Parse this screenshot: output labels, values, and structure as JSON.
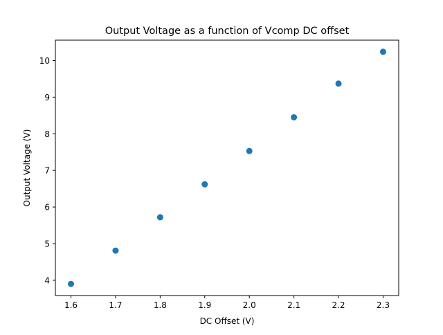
{
  "chart_data": {
    "type": "scatter",
    "title": "Output Voltage as a function of Vcomp DC offset",
    "xlabel": "DC Offset (V)",
    "ylabel": "Output Voltage (V)",
    "x": [
      1.6,
      1.7,
      1.8,
      1.9,
      2.0,
      2.1,
      2.2,
      2.3
    ],
    "y": [
      3.9,
      4.81,
      5.72,
      6.62,
      7.53,
      8.45,
      9.37,
      10.24
    ],
    "xlim": [
      1.565,
      2.335
    ],
    "ylim": [
      3.583,
      10.557
    ],
    "xticks": [
      1.6,
      1.7,
      1.8,
      1.9,
      2.0,
      2.1,
      2.2,
      2.3
    ],
    "xtick_labels": [
      "1.6",
      "1.7",
      "1.8",
      "1.9",
      "2.0",
      "2.1",
      "2.2",
      "2.3"
    ],
    "yticks": [
      4,
      5,
      6,
      7,
      8,
      9,
      10
    ],
    "ytick_labels": [
      "4",
      "5",
      "6",
      "7",
      "8",
      "9",
      "10"
    ],
    "grid": false,
    "legend": "none",
    "marker_color": "#1f77b4"
  }
}
